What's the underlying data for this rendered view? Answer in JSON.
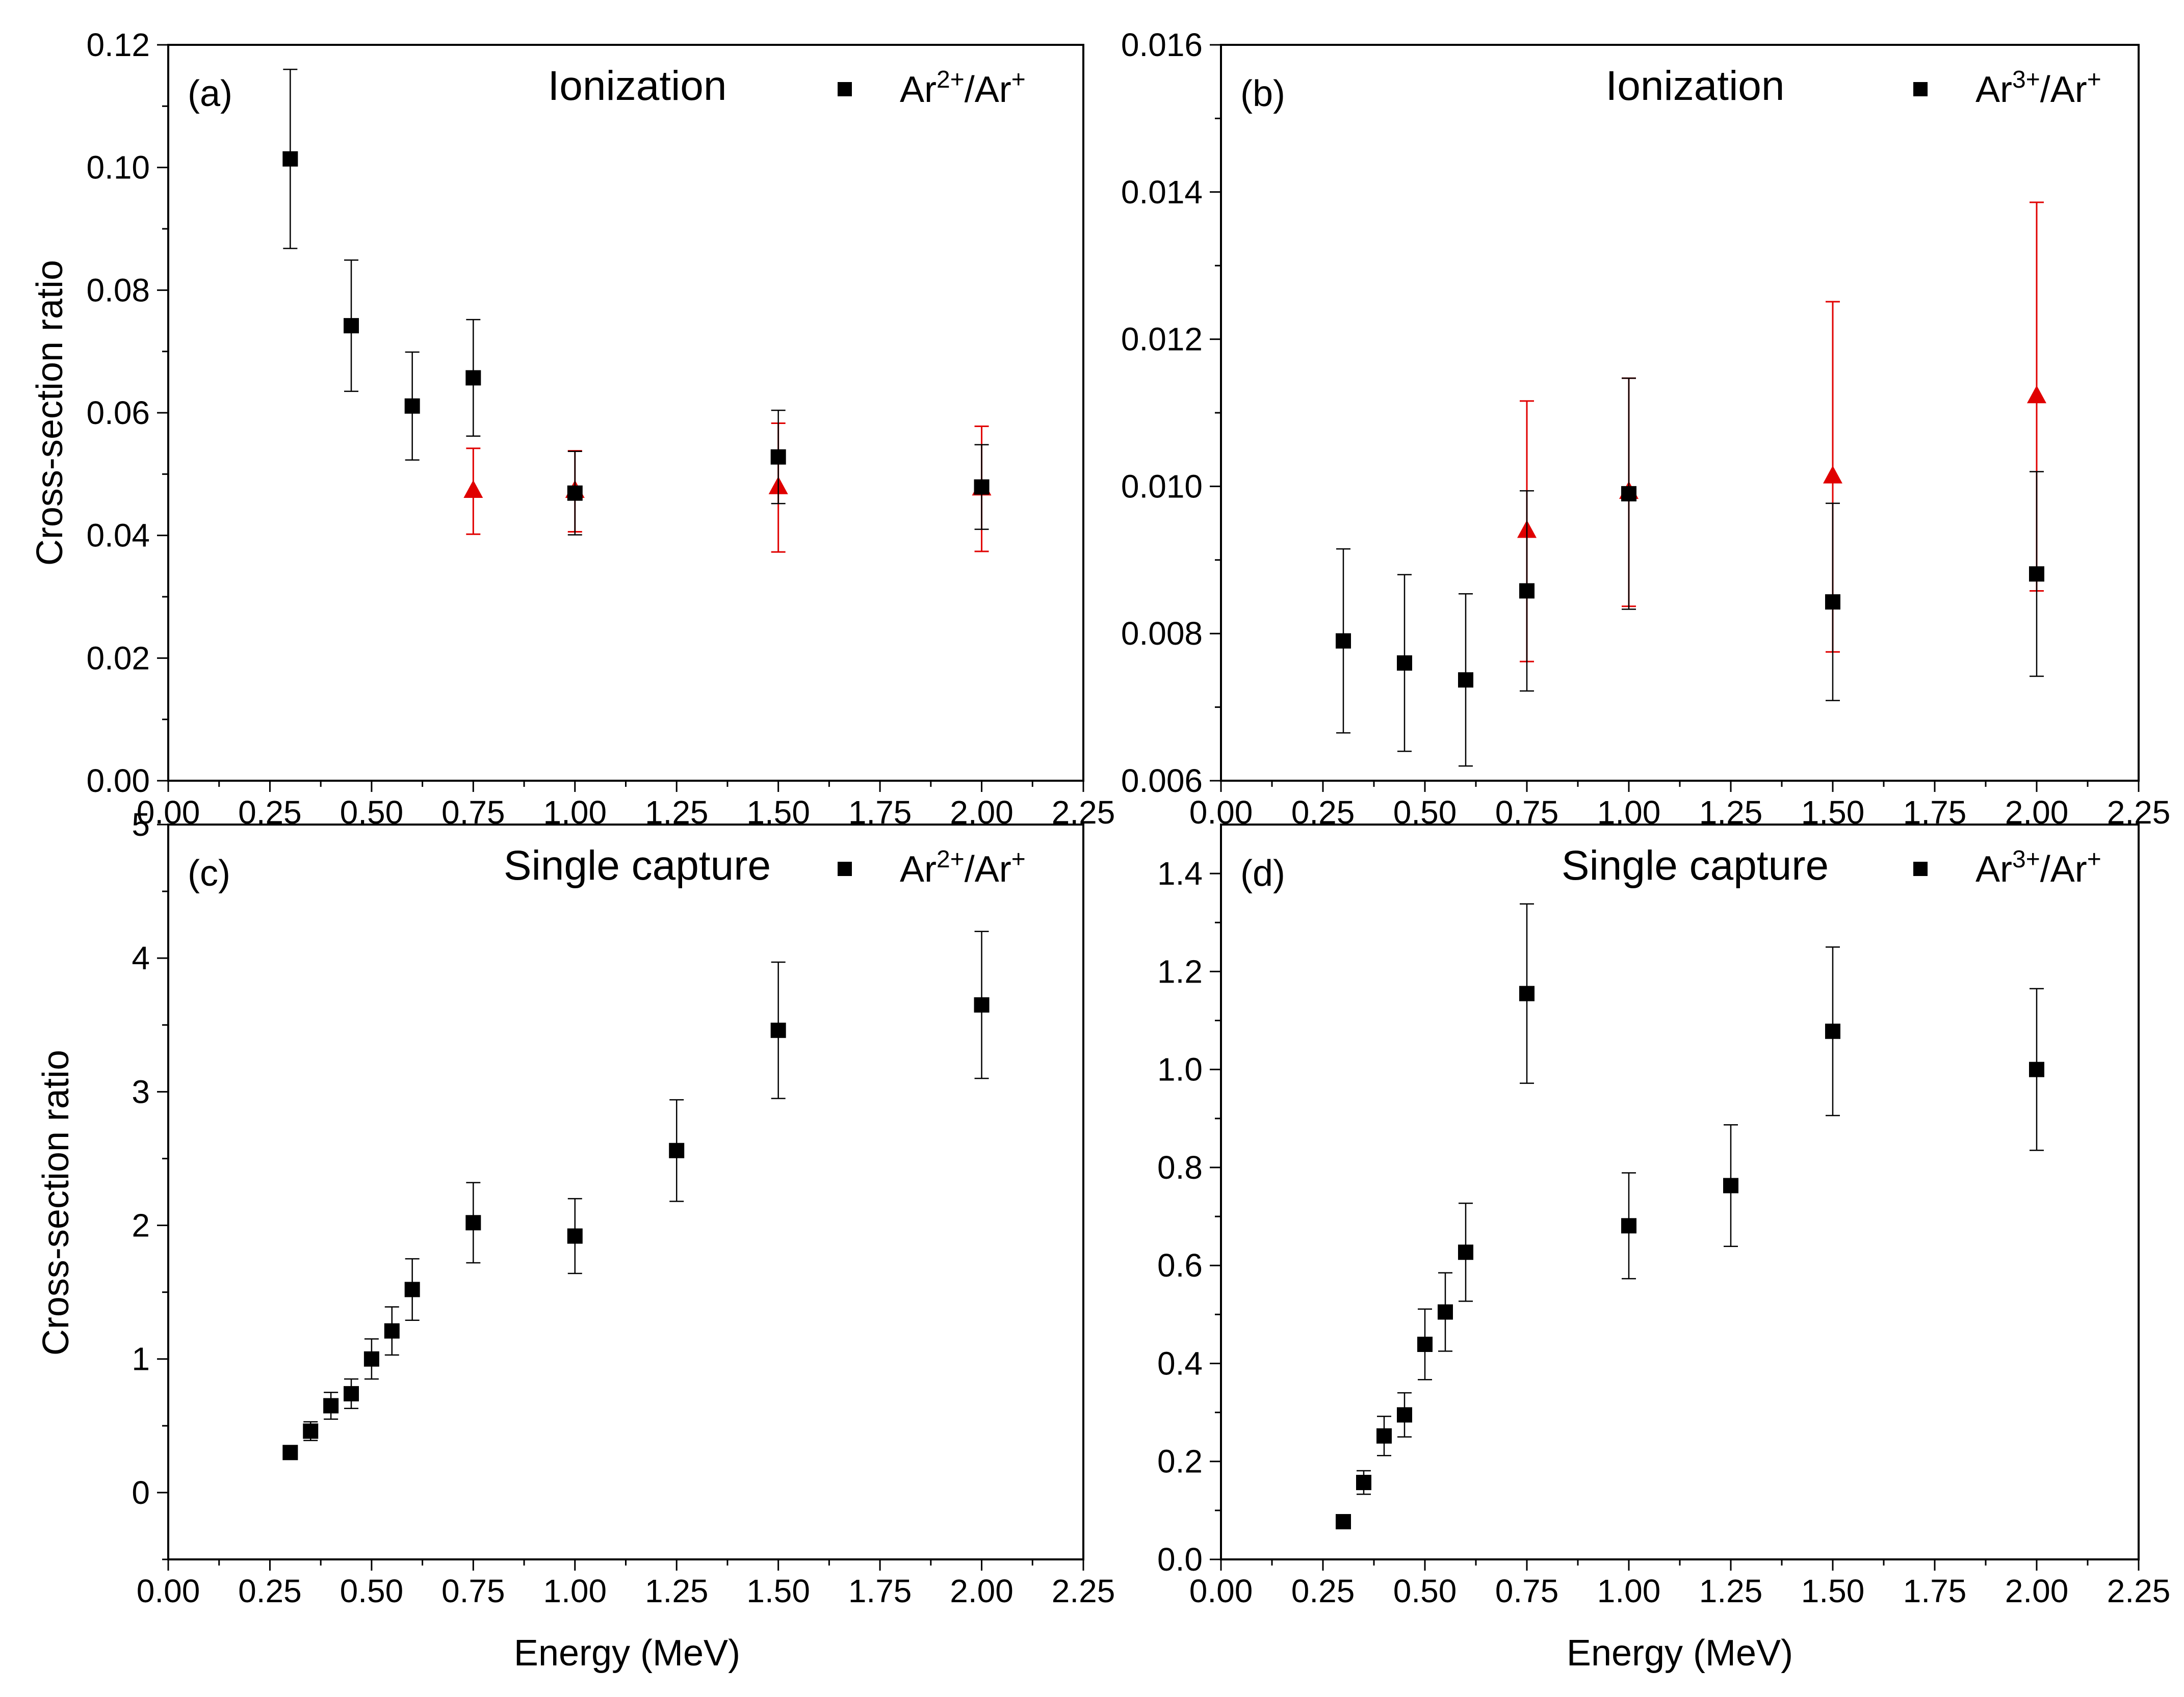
{
  "figure": {
    "x_label": "Energy (MeV)",
    "y_label": "Cross-section ratio"
  },
  "chart_data": [
    {
      "type": "scatter",
      "panel": "(a)",
      "title": "Ionization",
      "legend": [
        {
          "name": "Ar",
          "sup1": "2+",
          "mid": "/Ar",
          "sup2": "+"
        }
      ],
      "xlim": [
        0,
        2.25
      ],
      "ylim": [
        0,
        0.12
      ],
      "xticks": [
        "0.00",
        "0.25",
        "0.50",
        "0.75",
        "1.00",
        "1.25",
        "1.50",
        "1.75",
        "2.00",
        "2.25"
      ],
      "yticks": [
        "0.00",
        "0.02",
        "0.04",
        "0.06",
        "0.08",
        "0.10",
        "0.12"
      ],
      "grid": false,
      "legend_position": "top-right",
      "series": [
        {
          "name": "Ar2+/Ar+",
          "marker": "square",
          "color": "#000000",
          "x": [
            0.3,
            0.45,
            0.6,
            0.75,
            1.0,
            1.5,
            2.0
          ],
          "y": [
            0.1014,
            0.0742,
            0.0611,
            0.0657,
            0.0469,
            0.0528,
            0.0479
          ],
          "err": [
            0.0146,
            0.0107,
            0.0088,
            0.0095,
            0.0068,
            0.0076,
            0.0069
          ]
        },
        {
          "marker": "triangle",
          "color": "#e00000",
          "x": [
            0.75,
            1.0,
            1.5,
            2.0
          ],
          "y": [
            0.0472,
            0.0472,
            0.0478,
            0.0476
          ],
          "err": [
            0.007,
            0.0066,
            0.0105,
            0.0102
          ]
        }
      ]
    },
    {
      "type": "scatter",
      "panel": "(b)",
      "title": "Ionization",
      "legend": [
        {
          "name": "Ar",
          "sup1": "3+",
          "mid": "/Ar",
          "sup2": "+"
        }
      ],
      "xlim": [
        0,
        2.25
      ],
      "ylim": [
        0.006,
        0.016
      ],
      "xticks": [
        "0.00",
        "0.25",
        "0.50",
        "0.75",
        "1.00",
        "1.25",
        "1.50",
        "1.75",
        "2.00",
        "2.25"
      ],
      "yticks": [
        "0.006",
        "0.008",
        "0.010",
        "0.012",
        "0.014",
        "0.016"
      ],
      "grid": false,
      "legend_position": "top-right",
      "series": [
        {
          "name": "Ar3+/Ar+",
          "marker": "square",
          "color": "#000000",
          "x": [
            0.3,
            0.45,
            0.6,
            0.75,
            1.0,
            1.5,
            2.0
          ],
          "y": [
            0.0079,
            0.0076,
            0.00737,
            0.00858,
            0.0099,
            0.00843,
            0.00881
          ],
          "err": [
            0.00125,
            0.0012,
            0.00117,
            0.00136,
            0.00157,
            0.00134,
            0.00139
          ]
        },
        {
          "marker": "triangle",
          "color": "#e00000",
          "x": [
            0.75,
            1.0,
            1.5,
            2.0
          ],
          "y": [
            0.00939,
            0.00992,
            0.01013,
            0.01122
          ],
          "err": [
            0.00177,
            0.00155,
            0.00238,
            0.00264
          ]
        }
      ]
    },
    {
      "type": "scatter",
      "panel": "(c)",
      "title": "Single capture",
      "legend": [
        {
          "name": "Ar",
          "sup1": "2+",
          "mid": "/Ar",
          "sup2": "+"
        }
      ],
      "xlim": [
        0,
        2.25
      ],
      "ylim": [
        -0.5,
        5
      ],
      "xticks": [
        "0.00",
        "0.25",
        "0.50",
        "0.75",
        "1.00",
        "1.25",
        "1.50",
        "1.75",
        "2.00",
        "2.25"
      ],
      "yticks": [
        "0",
        "1",
        "2",
        "3",
        "4",
        "5"
      ],
      "grid": false,
      "legend_position": "top-right",
      "series": [
        {
          "name": "Ar2+/Ar+",
          "marker": "square",
          "color": "#000000",
          "x": [
            0.3,
            0.35,
            0.4,
            0.45,
            0.5,
            0.55,
            0.6,
            0.75,
            1.0,
            1.25,
            1.5,
            2.0
          ],
          "y": [
            0.3,
            0.46,
            0.65,
            0.74,
            1.0,
            1.21,
            1.52,
            2.02,
            1.92,
            2.56,
            3.46,
            3.65
          ],
          "err": [
            0.04,
            0.07,
            0.1,
            0.11,
            0.15,
            0.18,
            0.23,
            0.3,
            0.28,
            0.38,
            0.51,
            0.55
          ]
        }
      ]
    },
    {
      "type": "scatter",
      "panel": "(d)",
      "title": "Single capture",
      "legend": [
        {
          "name": "Ar",
          "sup1": "3+",
          "mid": "/Ar",
          "sup2": "+"
        }
      ],
      "xlim": [
        0,
        2.25
      ],
      "ylim": [
        0,
        1.5
      ],
      "xticks": [
        "0.00",
        "0.25",
        "0.50",
        "0.75",
        "1.00",
        "1.25",
        "1.50",
        "1.75",
        "2.00",
        "2.25"
      ],
      "yticks": [
        "0.0",
        "0.2",
        "0.4",
        "0.6",
        "0.8",
        "1.0",
        "1.2",
        "1.4"
      ],
      "grid": false,
      "legend_position": "top-right",
      "series": [
        {
          "name": "Ar3+/Ar+",
          "marker": "square",
          "color": "#000000",
          "x": [
            0.3,
            0.35,
            0.4,
            0.45,
            0.5,
            0.55,
            0.6,
            0.75,
            1.0,
            1.25,
            1.5,
            2.0
          ],
          "y": [
            0.077,
            0.157,
            0.252,
            0.295,
            0.439,
            0.505,
            0.627,
            1.155,
            0.681,
            0.763,
            1.078,
            1.0
          ],
          "err": [
            0.01,
            0.024,
            0.04,
            0.045,
            0.072,
            0.08,
            0.1,
            0.183,
            0.108,
            0.124,
            0.172,
            0.165
          ]
        }
      ]
    }
  ]
}
